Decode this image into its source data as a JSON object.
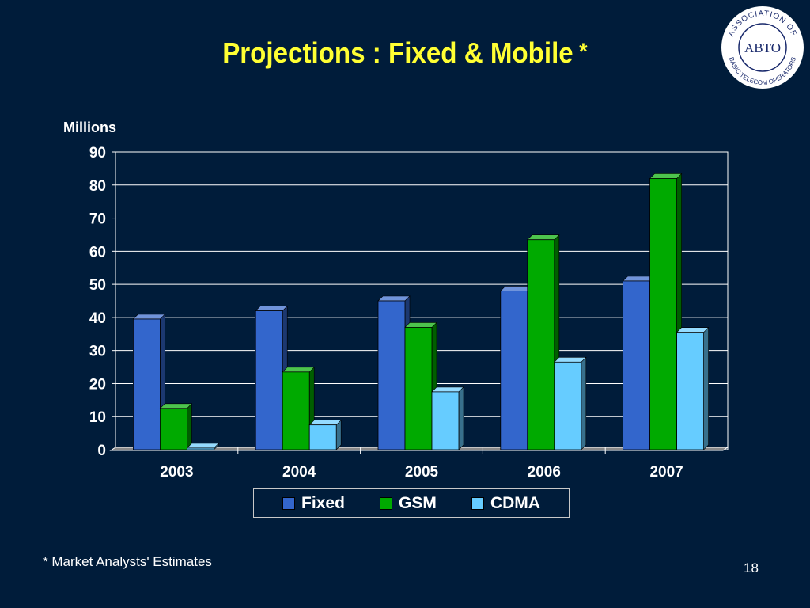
{
  "slide": {
    "title": "Projections : Fixed & Mobile",
    "title_mark": "*",
    "footnote": "* Market Analysts' Estimates",
    "page_number": "18"
  },
  "logo": {
    "center_text": "ABTO",
    "ring_top": "ASSOCIATION OF",
    "ring_bottom": "BASIC TELECOM OPERATORS"
  },
  "colors": {
    "background": "#001c3a",
    "title": "#ffff33",
    "fixed": "#3366cc",
    "gsm": "#00aa00",
    "cdma": "#66ccff"
  },
  "chart_data": {
    "type": "bar",
    "title": "",
    "xlabel": "",
    "ylabel": "Millions",
    "categories": [
      "2003",
      "2004",
      "2005",
      "2006",
      "2007"
    ],
    "series": [
      {
        "name": "Fixed",
        "values": [
          39.5,
          42,
          45,
          48,
          51
        ]
      },
      {
        "name": "GSM",
        "values": [
          12.5,
          23.5,
          37,
          63.5,
          82
        ]
      },
      {
        "name": "CDMA",
        "values": [
          0.5,
          7.5,
          17.5,
          26.5,
          35.5
        ]
      }
    ],
    "ylim": [
      0,
      90
    ],
    "yticks": [
      "0",
      "10",
      "20",
      "30",
      "40",
      "50",
      "60",
      "70",
      "80",
      "90"
    ],
    "grid": true,
    "legend_position": "bottom"
  }
}
